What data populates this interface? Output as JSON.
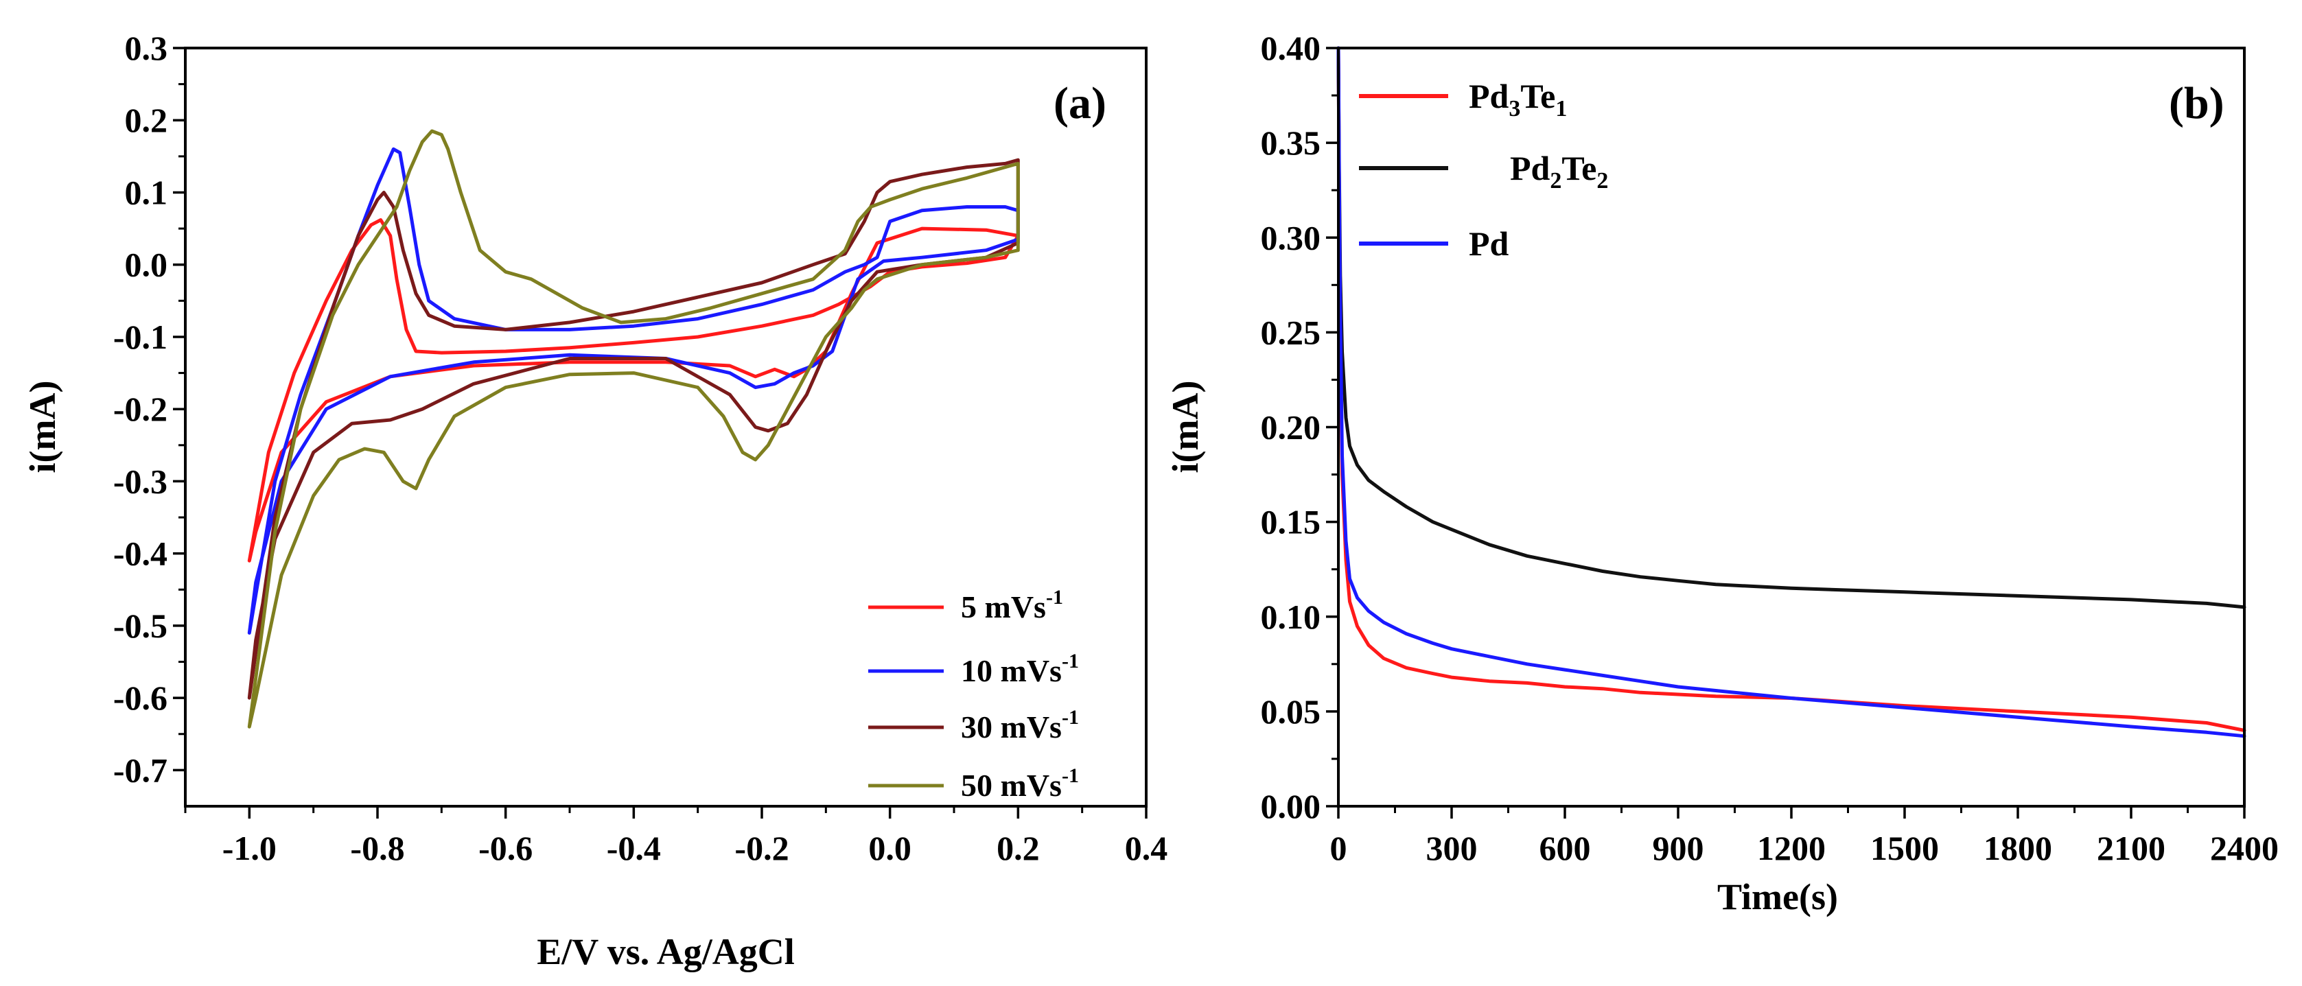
{
  "chart_data": [
    {
      "panel": "(a)",
      "type": "line",
      "xlabel": "E/V vs. Ag/AgCl",
      "ylabel": "i(mA)",
      "xlim": [
        -1.1,
        0.4
      ],
      "ylim": [
        -0.75,
        0.3
      ],
      "xticks": [
        -1.0,
        -0.8,
        -0.6,
        -0.4,
        -0.2,
        0.0,
        0.2,
        0.4
      ],
      "xtick_labels": [
        "-1.0",
        "-0.8",
        "-0.6",
        "-0.4",
        "-0.2",
        "0.0",
        "0.2",
        "0.4"
      ],
      "yticks": [
        0.3,
        0.2,
        0.1,
        0.0,
        -0.1,
        -0.2,
        -0.3,
        -0.4,
        -0.5,
        -0.6,
        -0.7
      ],
      "ytick_labels": [
        "0.3",
        "0.2",
        "0.1",
        "0.0",
        "-0.1",
        "-0.2",
        "-0.3",
        "-0.4",
        "-0.5",
        "-0.6",
        "-0.7"
      ],
      "legend_position": "bottom-right",
      "legend": [
        {
          "label": "5 mVs",
          "sup": "-1",
          "color": "#ff1a1a"
        },
        {
          "label": "10 mVs",
          "sup": "-1",
          "color": "#1a1aff"
        },
        {
          "label": "30 mVs",
          "sup": "-1",
          "color": "#7a1a1a"
        },
        {
          "label": "50 mVs",
          "sup": "-1",
          "color": "#7f7f20"
        }
      ],
      "series": [
        {
          "name": "5 mVs-1",
          "color": "#ff1a1a",
          "x": [
            -1.0,
            -0.97,
            -0.93,
            -0.88,
            -0.84,
            -0.81,
            -0.795,
            -0.78,
            -0.77,
            -0.755,
            -0.74,
            -0.7,
            -0.6,
            -0.5,
            -0.4,
            -0.3,
            -0.2,
            -0.12,
            -0.08,
            -0.05,
            -0.03,
            0.0,
            0.05,
            0.12,
            0.18,
            0.2,
            0.2,
            0.15,
            0.05,
            -0.02,
            -0.06,
            -0.1,
            -0.13,
            -0.15,
            -0.18,
            -0.21,
            -0.25,
            -0.35,
            -0.5,
            -0.65,
            -0.78,
            -0.88,
            -0.95,
            -0.99,
            -1.0
          ],
          "y": [
            -0.41,
            -0.26,
            -0.15,
            -0.05,
            0.02,
            0.055,
            0.062,
            0.04,
            -0.02,
            -0.09,
            -0.12,
            -0.122,
            -0.12,
            -0.115,
            -0.108,
            -0.1,
            -0.085,
            -0.07,
            -0.055,
            -0.04,
            -0.03,
            -0.01,
            -0.003,
            0.002,
            0.01,
            0.04,
            0.04,
            0.048,
            0.05,
            0.03,
            -0.04,
            -0.12,
            -0.145,
            -0.155,
            -0.145,
            -0.155,
            -0.14,
            -0.135,
            -0.135,
            -0.14,
            -0.155,
            -0.19,
            -0.26,
            -0.37,
            -0.41
          ]
        },
        {
          "name": "10 mVs-1",
          "color": "#1a1aff",
          "x": [
            -1.0,
            -0.96,
            -0.92,
            -0.87,
            -0.83,
            -0.8,
            -0.775,
            -0.765,
            -0.75,
            -0.735,
            -0.72,
            -0.68,
            -0.6,
            -0.5,
            -0.4,
            -0.3,
            -0.2,
            -0.12,
            -0.07,
            -0.04,
            -0.02,
            0.0,
            0.05,
            0.12,
            0.18,
            0.2,
            0.2,
            0.15,
            0.05,
            -0.01,
            -0.05,
            -0.09,
            -0.12,
            -0.15,
            -0.18,
            -0.21,
            -0.25,
            -0.35,
            -0.5,
            -0.65,
            -0.78,
            -0.88,
            -0.95,
            -0.99,
            -1.0
          ],
          "y": [
            -0.51,
            -0.3,
            -0.18,
            -0.06,
            0.04,
            0.11,
            0.16,
            0.155,
            0.08,
            0.0,
            -0.05,
            -0.075,
            -0.09,
            -0.09,
            -0.085,
            -0.075,
            -0.055,
            -0.035,
            -0.01,
            0.0,
            0.01,
            0.06,
            0.075,
            0.08,
            0.08,
            0.075,
            0.035,
            0.02,
            0.01,
            0.005,
            -0.02,
            -0.12,
            -0.14,
            -0.15,
            -0.165,
            -0.17,
            -0.15,
            -0.13,
            -0.125,
            -0.135,
            -0.155,
            -0.2,
            -0.3,
            -0.44,
            -0.51
          ]
        },
        {
          "name": "30 mVs-1",
          "color": "#7a1a1a",
          "x": [
            -1.0,
            -0.96,
            -0.92,
            -0.87,
            -0.83,
            -0.8,
            -0.79,
            -0.775,
            -0.76,
            -0.74,
            -0.72,
            -0.68,
            -0.6,
            -0.5,
            -0.4,
            -0.3,
            -0.2,
            -0.12,
            -0.07,
            -0.04,
            -0.02,
            0.0,
            0.05,
            0.12,
            0.18,
            0.2,
            0.2,
            0.15,
            0.05,
            -0.02,
            -0.06,
            -0.1,
            -0.13,
            -0.16,
            -0.19,
            -0.21,
            -0.25,
            -0.35,
            -0.5,
            -0.65,
            -0.73,
            -0.78,
            -0.84,
            -0.9,
            -0.96,
            -0.99,
            -1.0
          ],
          "y": [
            -0.6,
            -0.35,
            -0.2,
            -0.06,
            0.04,
            0.09,
            0.1,
            0.08,
            0.02,
            -0.04,
            -0.07,
            -0.085,
            -0.09,
            -0.08,
            -0.065,
            -0.045,
            -0.025,
            0.0,
            0.015,
            0.06,
            0.1,
            0.115,
            0.125,
            0.135,
            0.14,
            0.145,
            0.03,
            0.01,
            0.0,
            -0.01,
            -0.05,
            -0.12,
            -0.18,
            -0.22,
            -0.23,
            -0.225,
            -0.18,
            -0.13,
            -0.13,
            -0.165,
            -0.2,
            -0.215,
            -0.22,
            -0.26,
            -0.38,
            -0.52,
            -0.6
          ]
        },
        {
          "name": "50 mVs-1",
          "color": "#7f7f20",
          "x": [
            -1.0,
            -0.96,
            -0.92,
            -0.87,
            -0.83,
            -0.8,
            -0.77,
            -0.75,
            -0.73,
            -0.715,
            -0.7,
            -0.69,
            -0.67,
            -0.64,
            -0.6,
            -0.56,
            -0.52,
            -0.48,
            -0.42,
            -0.35,
            -0.28,
            -0.2,
            -0.12,
            -0.07,
            -0.05,
            -0.03,
            0.0,
            0.05,
            0.12,
            0.18,
            0.2,
            0.2,
            0.15,
            0.05,
            -0.02,
            -0.04,
            -0.06,
            -0.08,
            -0.1,
            -0.13,
            -0.16,
            -0.19,
            -0.21,
            -0.23,
            -0.26,
            -0.3,
            -0.4,
            -0.5,
            -0.6,
            -0.68,
            -0.72,
            -0.74,
            -0.76,
            -0.79,
            -0.82,
            -0.86,
            -0.9,
            -0.95,
            -0.99,
            -1.0
          ],
          "y": [
            -0.64,
            -0.37,
            -0.2,
            -0.07,
            0.0,
            0.04,
            0.08,
            0.13,
            0.17,
            0.185,
            0.18,
            0.16,
            0.1,
            0.02,
            -0.01,
            -0.02,
            -0.04,
            -0.06,
            -0.08,
            -0.075,
            -0.06,
            -0.04,
            -0.02,
            0.02,
            0.06,
            0.08,
            0.09,
            0.105,
            0.12,
            0.135,
            0.14,
            0.02,
            0.01,
            0.0,
            -0.02,
            -0.035,
            -0.06,
            -0.08,
            -0.1,
            -0.15,
            -0.2,
            -0.25,
            -0.27,
            -0.26,
            -0.21,
            -0.17,
            -0.15,
            -0.152,
            -0.17,
            -0.21,
            -0.27,
            -0.31,
            -0.3,
            -0.26,
            -0.255,
            -0.27,
            -0.32,
            -0.43,
            -0.6,
            -0.64
          ]
        }
      ]
    },
    {
      "panel": "(b)",
      "type": "line",
      "xlabel": "Time(s)",
      "ylabel": "i(mA)",
      "xlim": [
        0,
        2400
      ],
      "ylim": [
        0.0,
        0.4
      ],
      "xticks": [
        0,
        300,
        600,
        900,
        1200,
        1500,
        1800,
        2100,
        2400
      ],
      "xtick_labels": [
        "0",
        "300",
        "600",
        "900",
        "1200",
        "1500",
        "1800",
        "2100",
        "2400"
      ],
      "yticks": [
        0.0,
        0.05,
        0.1,
        0.15,
        0.2,
        0.25,
        0.3,
        0.35,
        0.4
      ],
      "ytick_labels": [
        "0.00",
        "0.05",
        "0.10",
        "0.15",
        "0.20",
        "0.25",
        "0.30",
        "0.35",
        "0.40"
      ],
      "legend_position": "top-left",
      "legend": [
        {
          "base1": "Pd",
          "sub1": "3",
          "base2": "Te",
          "sub2": "1",
          "color": "#ff1a1a"
        },
        {
          "base1": "Pd",
          "sub1": "2",
          "base2": "Te",
          "sub2": "2",
          "color": "#111111"
        },
        {
          "base1": "Pd",
          "sub1": "",
          "base2": "",
          "sub2": "",
          "color": "#1a1aff"
        }
      ],
      "series": [
        {
          "name": "Pd3Te1",
          "color": "#ff1a1a",
          "x": [
            0,
            2,
            5,
            10,
            20,
            30,
            50,
            80,
            120,
            180,
            250,
            300,
            400,
            500,
            600,
            700,
            800,
            900,
            1000,
            1200,
            1500,
            1800,
            2100,
            2300,
            2400
          ],
          "y": [
            0.4,
            0.33,
            0.25,
            0.175,
            0.13,
            0.108,
            0.095,
            0.085,
            0.078,
            0.073,
            0.07,
            0.068,
            0.066,
            0.065,
            0.063,
            0.062,
            0.06,
            0.059,
            0.058,
            0.057,
            0.053,
            0.05,
            0.047,
            0.044,
            0.04
          ]
        },
        {
          "name": "Pd2Te2",
          "color": "#111111",
          "x": [
            0,
            2,
            5,
            10,
            20,
            30,
            50,
            80,
            120,
            180,
            250,
            300,
            400,
            500,
            600,
            700,
            800,
            900,
            1000,
            1200,
            1500,
            1800,
            2100,
            2300,
            2400
          ],
          "y": [
            0.4,
            0.34,
            0.28,
            0.24,
            0.205,
            0.19,
            0.18,
            0.172,
            0.166,
            0.158,
            0.15,
            0.146,
            0.138,
            0.132,
            0.128,
            0.124,
            0.121,
            0.119,
            0.117,
            0.115,
            0.113,
            0.111,
            0.109,
            0.107,
            0.105
          ]
        },
        {
          "name": "Pd",
          "color": "#1a1aff",
          "x": [
            0,
            2,
            5,
            10,
            20,
            30,
            50,
            80,
            120,
            180,
            250,
            300,
            400,
            500,
            600,
            700,
            800,
            900,
            1000,
            1200,
            1500,
            1800,
            2100,
            2300,
            2400
          ],
          "y": [
            0.4,
            0.33,
            0.26,
            0.185,
            0.14,
            0.12,
            0.11,
            0.103,
            0.097,
            0.091,
            0.086,
            0.083,
            0.079,
            0.075,
            0.072,
            0.069,
            0.066,
            0.063,
            0.061,
            0.057,
            0.052,
            0.047,
            0.042,
            0.039,
            0.037
          ]
        }
      ]
    }
  ]
}
